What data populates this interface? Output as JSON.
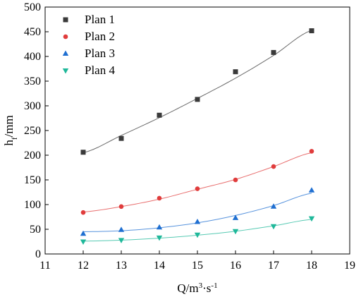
{
  "chart_data": {
    "type": "scatter",
    "xlabel": {
      "base": "Q/m",
      "sup1": "3",
      "mid": "·s",
      "sup2": "-1"
    },
    "ylabel": {
      "base": "h",
      "sub": "f",
      "tail": "/mm"
    },
    "xlim": [
      11,
      19
    ],
    "ylim": [
      0,
      500
    ],
    "xticks": [
      11,
      12,
      13,
      14,
      15,
      16,
      17,
      18,
      19
    ],
    "yticks": [
      0,
      50,
      100,
      150,
      200,
      250,
      300,
      350,
      400,
      450,
      500
    ],
    "x": [
      12,
      13,
      14,
      15,
      16,
      17,
      18
    ],
    "legend_position": "top-left",
    "grid": false,
    "fit_lines": true,
    "series": [
      {
        "name": "Plan 1",
        "marker": "square",
        "color": "#3a3a3a",
        "values": [
          206,
          234,
          281,
          313,
          369,
          408,
          452
        ],
        "fit": [
          205,
          240,
          276,
          315,
          356,
          402,
          453
        ]
      },
      {
        "name": "Plan 2",
        "marker": "circle",
        "color": "#e03c3c",
        "values": [
          84,
          96,
          113,
          132,
          150,
          177,
          208
        ],
        "fit": [
          85,
          96,
          111,
          131,
          151,
          177,
          205
        ]
      },
      {
        "name": "Plan 3",
        "marker": "triangle-up",
        "color": "#1f6fd1",
        "values": [
          41,
          49,
          54,
          65,
          73,
          96,
          129
        ],
        "fit": [
          45,
          47,
          53,
          63,
          78,
          98,
          123
        ]
      },
      {
        "name": "Plan 4",
        "marker": "triangle-down",
        "color": "#1fb89a",
        "values": [
          25,
          28,
          33,
          39,
          46,
          56,
          72
        ],
        "fit": [
          26,
          28,
          32,
          38,
          46,
          57,
          70
        ]
      }
    ]
  }
}
